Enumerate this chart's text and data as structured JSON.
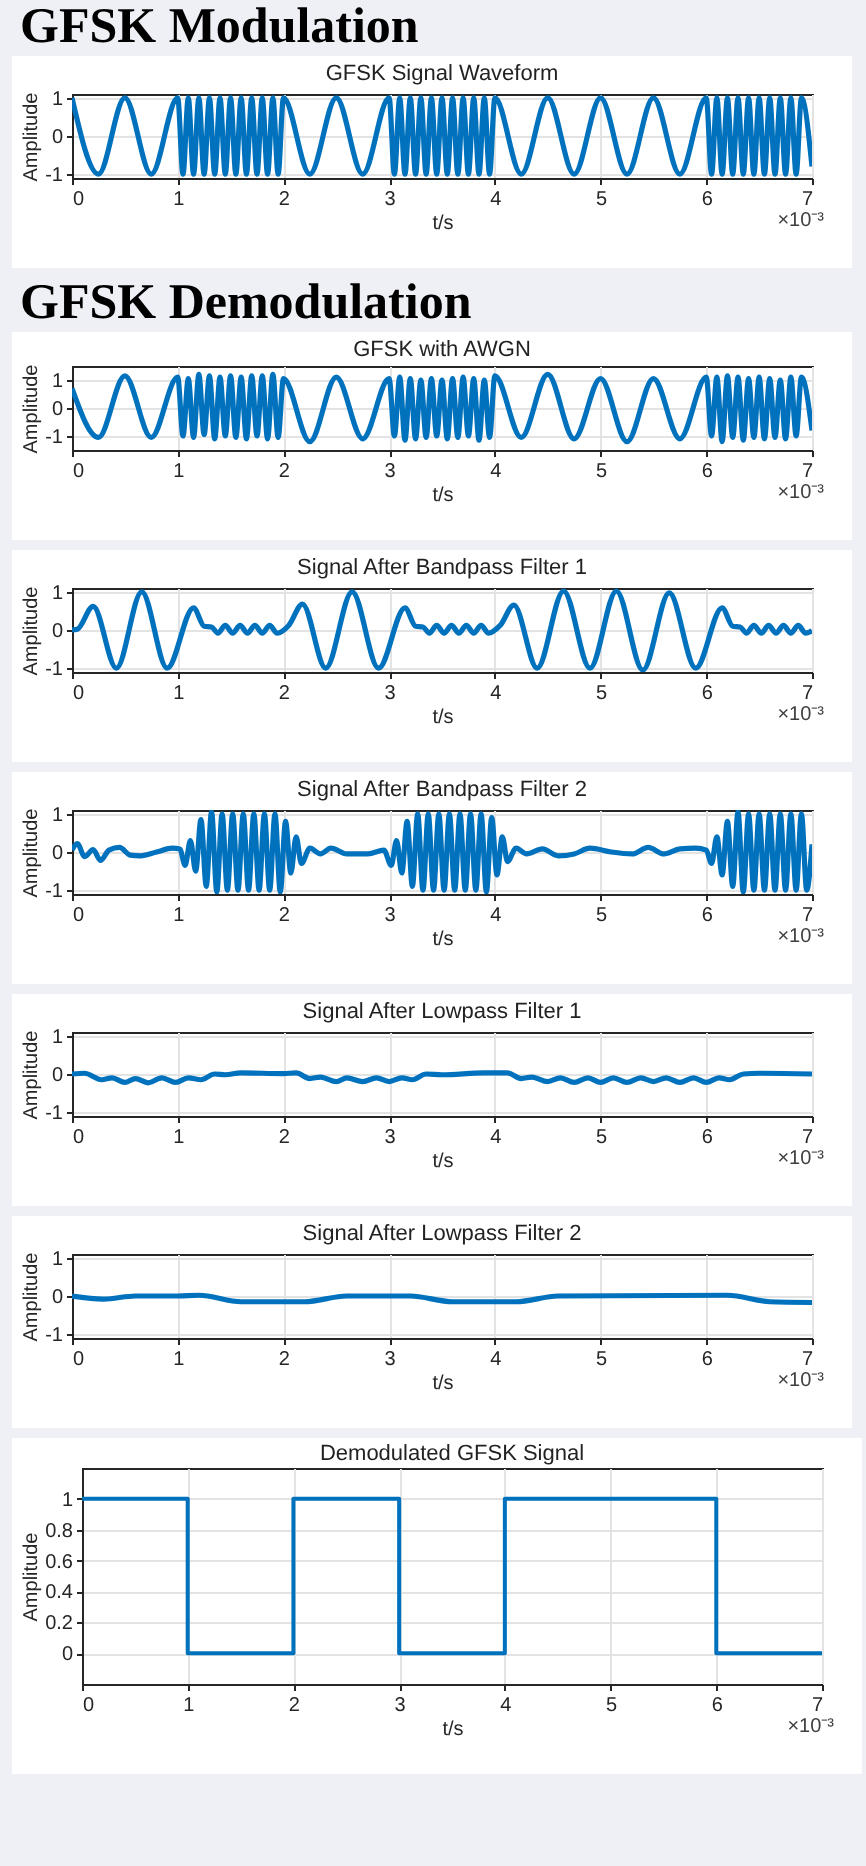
{
  "chart_data": [
    {
      "type": "line",
      "title": "GFSK Signal Waveform",
      "xlabel": "t/s",
      "ylabel": "Amplitude",
      "annotations": [
        "GFSK Modulation",
        "×10⁻³"
      ],
      "xlim": [
        0,
        7
      ],
      "xticks": [
        0,
        1,
        2,
        3,
        4,
        5,
        6,
        7
      ],
      "ylim": [
        -1.1,
        1.1
      ],
      "yticks": [
        -1,
        0,
        1
      ],
      "grid": true,
      "series": [
        {
          "color": "#0072bd",
          "x": [
            0,
            0.25,
            0.5,
            0.75,
            1,
            1.05,
            1.1,
            1.15,
            1.2,
            1.25,
            1.3,
            1.35,
            1.4,
            1.45,
            1.5,
            1.55,
            1.6,
            1.65,
            1.7,
            1.75,
            1.8,
            1.85,
            1.9,
            1.95,
            2,
            2.25,
            2.5,
            2.75,
            3,
            3.05,
            3.1,
            3.15,
            3.2,
            3.25,
            3.3,
            3.35,
            3.4,
            3.45,
            3.5,
            3.55,
            3.6,
            3.65,
            3.7,
            3.75,
            3.8,
            3.85,
            3.9,
            3.95,
            4,
            4.25,
            4.5,
            4.75,
            5,
            5.25,
            5.5,
            5.75,
            6,
            6.05,
            6.1,
            6.15,
            6.2,
            6.25,
            6.3,
            6.35,
            6.4,
            6.45,
            6.5,
            6.55,
            6.6,
            6.65,
            6.7,
            6.75,
            6.8,
            6.85,
            6.9,
            7
          ],
          "values": [
            1,
            -1,
            1,
            -1,
            1,
            -1,
            1,
            -1,
            1,
            -1,
            1,
            -1,
            1,
            -1,
            1,
            -1,
            1,
            -1,
            1,
            -1,
            1,
            -1,
            1,
            -1,
            1,
            -1,
            1,
            -1,
            1,
            -1,
            1,
            -1,
            1,
            -1,
            1,
            -1,
            1,
            -1,
            1,
            -1,
            1,
            -1,
            1,
            -1,
            1,
            -1,
            1,
            -1,
            1,
            -1,
            1,
            -1,
            1,
            -1,
            1,
            -1,
            1,
            -1,
            1,
            -1,
            1,
            -1,
            1,
            -1,
            1,
            -1,
            1,
            -1,
            1,
            -1,
            1,
            -1,
            1,
            -1,
            1,
            -0.8
          ]
        }
      ]
    },
    {
      "type": "line",
      "title": "GFSK with AWGN",
      "xlabel": "t/s",
      "ylabel": "Amplitude",
      "annotations": [
        "GFSK Demodulation",
        "×10⁻³"
      ],
      "xlim": [
        0,
        7
      ],
      "xticks": [
        0,
        1,
        2,
        3,
        4,
        5,
        6,
        7
      ],
      "ylim": [
        -1.5,
        1.5
      ],
      "yticks": [
        -1,
        0,
        1
      ],
      "grid": true,
      "series": [
        {
          "color": "#0072bd",
          "x": [
            0,
            0.25,
            0.5,
            0.75,
            1,
            1.05,
            1.1,
            1.15,
            1.2,
            1.25,
            1.3,
            1.35,
            1.4,
            1.45,
            1.5,
            1.55,
            1.6,
            1.65,
            1.7,
            1.75,
            1.8,
            1.85,
            1.9,
            1.95,
            2,
            2.25,
            2.5,
            2.75,
            3,
            3.05,
            3.1,
            3.15,
            3.2,
            3.25,
            3.3,
            3.35,
            3.4,
            3.45,
            3.5,
            3.55,
            3.6,
            3.65,
            3.7,
            3.75,
            3.8,
            3.85,
            3.9,
            3.95,
            4,
            4.25,
            4.5,
            4.75,
            5,
            5.25,
            5.5,
            5.75,
            6,
            6.05,
            6.1,
            6.15,
            6.2,
            6.25,
            6.3,
            6.35,
            6.4,
            6.45,
            6.5,
            6.55,
            6.6,
            6.65,
            6.7,
            6.75,
            6.8,
            6.85,
            6.9,
            7
          ],
          "values": [
            0.7,
            -1.05,
            1.15,
            -1.05,
            1.1,
            -1.0,
            1.05,
            -1.05,
            1.2,
            -0.95,
            1.15,
            -1.1,
            1.1,
            -1.0,
            1.15,
            -1.05,
            1.1,
            -1.1,
            1.15,
            -1.0,
            1.15,
            -1.1,
            1.2,
            -1.05,
            1.05,
            -1.2,
            1.1,
            -1.1,
            1.05,
            -1.0,
            1.1,
            -1.15,
            1.05,
            -1.1,
            1.0,
            -1.05,
            1.05,
            -1.0,
            1.0,
            -1.1,
            1.05,
            -1.05,
            1.1,
            -1.0,
            1.05,
            -1.15,
            1.0,
            -1.05,
            1.15,
            -1.05,
            1.2,
            -1.1,
            1.05,
            -1.2,
            1.05,
            -1.1,
            1.1,
            -1.0,
            1.1,
            -1.2,
            1.15,
            -1.05,
            1.1,
            -1.15,
            1.05,
            -1.05,
            1.1,
            -1.1,
            1.05,
            -1.05,
            1.0,
            -1.1,
            1.1,
            -1.0,
            1.1,
            -0.8
          ]
        }
      ]
    },
    {
      "type": "line",
      "title": "Signal After Bandpass Filter 1",
      "xlabel": "t/s",
      "ylabel": "Amplitude",
      "annotations": [
        "×10⁻³"
      ],
      "xlim": [
        0,
        7
      ],
      "xticks": [
        0,
        1,
        2,
        3,
        4,
        5,
        6,
        7
      ],
      "ylim": [
        -1.1,
        1.1
      ],
      "yticks": [
        -1,
        0,
        1
      ],
      "grid": true,
      "series": [
        {
          "color": "#0072bd",
          "x": [
            0,
            0.05,
            0.2,
            0.42,
            0.66,
            0.9,
            1.15,
            1.25,
            1.32,
            1.38,
            1.45,
            1.52,
            1.59,
            1.66,
            1.73,
            1.8,
            1.87,
            1.94,
            2.05,
            2.18,
            2.4,
            2.65,
            2.9,
            3.15,
            3.25,
            3.32,
            3.38,
            3.45,
            3.52,
            3.59,
            3.66,
            3.73,
            3.8,
            3.87,
            3.94,
            4.05,
            4.18,
            4.4,
            4.65,
            4.9,
            5.15,
            5.4,
            5.65,
            5.9,
            6.15,
            6.25,
            6.32,
            6.38,
            6.45,
            6.52,
            6.59,
            6.66,
            6.73,
            6.8,
            6.87,
            6.94,
            7
          ],
          "values": [
            0,
            0.02,
            0.62,
            -1,
            1,
            -1,
            0.58,
            0.1,
            0.08,
            -0.08,
            0.12,
            -0.08,
            0.12,
            -0.08,
            0.12,
            -0.08,
            0.12,
            -0.08,
            0.12,
            0.68,
            -1,
            1,
            -1,
            0.58,
            0.1,
            0.08,
            -0.08,
            0.12,
            -0.08,
            0.12,
            -0.08,
            0.12,
            -0.08,
            0.12,
            -0.08,
            0.12,
            0.65,
            -1,
            1.02,
            -1,
            1.02,
            -1.05,
            0.97,
            -1,
            0.58,
            0.1,
            0.08,
            -0.08,
            0.12,
            -0.08,
            0.12,
            -0.08,
            0.12,
            -0.08,
            0.12,
            -0.08,
            -0.02
          ]
        }
      ]
    },
    {
      "type": "line",
      "title": "Signal After Bandpass Filter 2",
      "xlabel": "t/s",
      "ylabel": "Amplitude",
      "annotations": [
        "×10⁻³"
      ],
      "xlim": [
        0,
        7
      ],
      "xticks": [
        0,
        1,
        2,
        3,
        4,
        5,
        6,
        7
      ],
      "ylim": [
        -1.1,
        1.1
      ],
      "yticks": [
        -1,
        0,
        1
      ],
      "grid": true,
      "series": [
        {
          "color": "#0072bd",
          "x": [
            0,
            0.05,
            0.12,
            0.2,
            0.27,
            0.35,
            0.45,
            0.55,
            0.65,
            0.8,
            0.95,
            1.02,
            1.07,
            1.12,
            1.17,
            1.22,
            1.27,
            1.32,
            1.37,
            1.42,
            1.47,
            1.52,
            1.57,
            1.62,
            1.67,
            1.72,
            1.77,
            1.82,
            1.87,
            1.92,
            1.97,
            2.02,
            2.07,
            2.12,
            2.17,
            2.25,
            2.35,
            2.45,
            2.6,
            2.8,
            2.95,
            3.02,
            3.07,
            3.12,
            3.17,
            3.22,
            3.27,
            3.32,
            3.37,
            3.42,
            3.47,
            3.52,
            3.57,
            3.62,
            3.67,
            3.72,
            3.77,
            3.82,
            3.87,
            3.92,
            3.97,
            4.02,
            4.07,
            4.12,
            4.2,
            4.3,
            4.45,
            4.6,
            4.75,
            4.9,
            5.1,
            5.3,
            5.45,
            5.6,
            5.75,
            5.9,
            6.0,
            6.05,
            6.1,
            6.15,
            6.2,
            6.25,
            6.3,
            6.35,
            6.4,
            6.45,
            6.5,
            6.55,
            6.6,
            6.65,
            6.7,
            6.75,
            6.8,
            6.85,
            6.9,
            6.95,
            7
          ],
          "values": [
            0.05,
            0.22,
            -0.12,
            0.06,
            -0.22,
            0.05,
            0.12,
            -0.08,
            -0.1,
            0,
            0.1,
            0.08,
            -0.35,
            0.3,
            -0.5,
            0.85,
            -0.9,
            1.05,
            -1.05,
            1.0,
            -1.0,
            1.0,
            -1.0,
            1.0,
            -1.0,
            1.0,
            -1.0,
            1.0,
            -1.0,
            1.0,
            -1.05,
            0.8,
            -0.55,
            0.4,
            -0.3,
            0.1,
            -0.05,
            0.1,
            -0.05,
            -0.05,
            0.05,
            -0.35,
            0.3,
            -0.55,
            0.8,
            -0.9,
            1.0,
            -1.0,
            1.0,
            -1.0,
            1.0,
            -1.0,
            1.0,
            -1.0,
            1.0,
            -1.0,
            1.0,
            -1.0,
            1.0,
            -1.05,
            0.9,
            -0.6,
            0.4,
            -0.25,
            0.1,
            -0.05,
            0.08,
            -0.1,
            -0.05,
            0.1,
            0,
            -0.05,
            0.12,
            -0.05,
            0.08,
            0.1,
            0.05,
            -0.3,
            0.4,
            -0.6,
            0.8,
            -0.9,
            1.05,
            -1.05,
            1.0,
            -1.0,
            1.0,
            -1.0,
            1.0,
            -1.0,
            1.0,
            -1.0,
            1.0,
            -1.0,
            1.0,
            -1.0,
            0.2
          ]
        }
      ]
    },
    {
      "type": "line",
      "title": "Signal After Lowpass Filter 1",
      "xlabel": "t/s",
      "ylabel": "Amplitude",
      "annotations": [
        "×10⁻³"
      ],
      "xlim": [
        0,
        7
      ],
      "xticks": [
        0,
        1,
        2,
        3,
        4,
        5,
        6,
        7
      ],
      "ylim": [
        -1.1,
        1.1
      ],
      "yticks": [
        -1,
        0,
        1
      ],
      "grid": true,
      "series": [
        {
          "color": "#0072bd",
          "x": [
            0,
            0.12,
            0.28,
            0.38,
            0.5,
            0.6,
            0.72,
            0.85,
            0.98,
            1.1,
            1.22,
            1.35,
            1.45,
            1.6,
            2.0,
            2.12,
            2.25,
            2.35,
            2.5,
            2.6,
            2.75,
            2.88,
            3.0,
            3.12,
            3.22,
            3.35,
            3.5,
            3.9,
            4.12,
            4.25,
            4.35,
            4.5,
            4.62,
            4.75,
            4.88,
            5.0,
            5.12,
            5.25,
            5.38,
            5.5,
            5.62,
            5.75,
            5.88,
            6.0,
            6.12,
            6.22,
            6.35,
            6.5,
            7.0
          ],
          "values": [
            0,
            0.02,
            -0.15,
            -0.1,
            -0.22,
            -0.12,
            -0.23,
            -0.1,
            -0.22,
            -0.1,
            -0.15,
            0,
            -0.02,
            0.03,
            0.01,
            0.03,
            -0.12,
            -0.08,
            -0.2,
            -0.1,
            -0.2,
            -0.1,
            -0.2,
            -0.1,
            -0.15,
            0,
            -0.02,
            0.03,
            0.03,
            -0.12,
            -0.08,
            -0.2,
            -0.1,
            -0.22,
            -0.1,
            -0.22,
            -0.1,
            -0.22,
            -0.1,
            -0.2,
            -0.1,
            -0.22,
            -0.1,
            -0.22,
            -0.1,
            -0.15,
            0,
            0.02,
            0
          ]
        }
      ]
    },
    {
      "type": "line",
      "title": "Signal After Lowpass Filter 2",
      "xlabel": "t/s",
      "ylabel": "Amplitude",
      "annotations": [
        "×10⁻³"
      ],
      "xlim": [
        0,
        7
      ],
      "xticks": [
        0,
        1,
        2,
        3,
        4,
        5,
        6,
        7
      ],
      "ylim": [
        -1.1,
        1.1
      ],
      "yticks": [
        -1,
        0,
        1
      ],
      "grid": true,
      "series": [
        {
          "color": "#0072bd",
          "x": [
            0,
            0.3,
            0.6,
            1.0,
            1.2,
            1.6,
            2.2,
            2.6,
            3.2,
            3.6,
            4.2,
            4.6,
            6.2,
            6.6,
            7
          ],
          "values": [
            0,
            -0.08,
            0,
            0,
            0.02,
            -0.15,
            -0.15,
            0,
            0,
            -0.15,
            -0.15,
            0,
            0.02,
            -0.15,
            -0.17
          ]
        }
      ]
    },
    {
      "type": "step",
      "title": "Demodulated GFSK Signal",
      "xlabel": "t/s",
      "ylabel": "Amplitude",
      "annotations": [
        "×10⁻³"
      ],
      "xlim": [
        0,
        7
      ],
      "xticks": [
        0,
        1,
        2,
        3,
        4,
        5,
        6,
        7
      ],
      "ylim": [
        -0.2,
        1.2
      ],
      "yticks": [
        0,
        0.2,
        0.4,
        0.6,
        0.8,
        1
      ],
      "grid": true,
      "series": [
        {
          "color": "#0072bd",
          "x": [
            0,
            1,
            2,
            3,
            4,
            5,
            6,
            7
          ],
          "values": [
            1,
            0,
            1,
            0,
            1,
            1,
            0,
            0
          ]
        }
      ]
    }
  ]
}
